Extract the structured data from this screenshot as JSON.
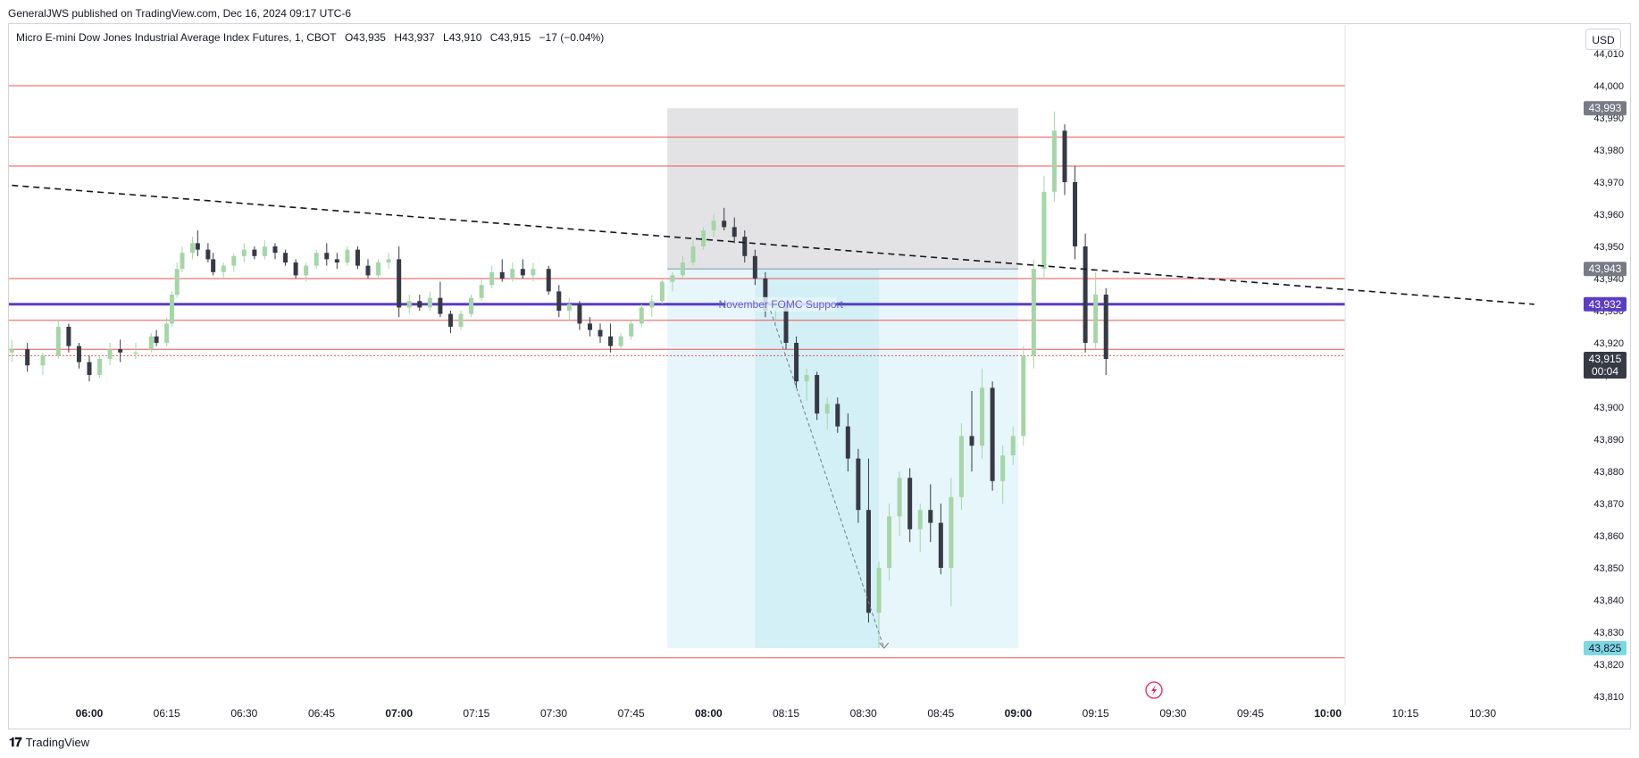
{
  "header": {
    "published": "GeneralJWS published on TradingView.com, Dec 16, 2024 09:17 UTC-6"
  },
  "legend": {
    "symbol": "Micro E-mini Dow Jones Industrial Average Index Futures, 1, CBOT",
    "open": "O43,935",
    "high": "H43,937",
    "low": "L43,910",
    "close": "C43,915",
    "change": "−17 (−0.04%)"
  },
  "currency": "USD",
  "footer": {
    "brand": "TradingView"
  },
  "colors": {
    "up": "#a5d6a7",
    "down": "#363a45",
    "level": "#ef5350",
    "support": "#5b3cc4",
    "price_label": "#363a45",
    "target_label": "#7dd8e6"
  },
  "chart_data": {
    "type": "candlestick",
    "interval": "1 minute",
    "xlim": [
      "05:45",
      "10:40"
    ],
    "ylim": [
      43805,
      44020
    ],
    "y_ticks": [
      "44,010",
      "44,000",
      "43,990",
      "43,980",
      "43,970",
      "43,960",
      "43,950",
      "43,940",
      "43,930",
      "43,920",
      "43,910",
      "43,900",
      "43,890",
      "43,880",
      "43,870",
      "43,860",
      "43,850",
      "43,840",
      "43,830",
      "43,820",
      "43,810"
    ],
    "x_ticks": [
      {
        "label": "06:00",
        "major": true
      },
      {
        "label": "06:15",
        "major": false
      },
      {
        "label": "06:30",
        "major": false
      },
      {
        "label": "06:45",
        "major": false
      },
      {
        "label": "07:00",
        "major": true
      },
      {
        "label": "07:15",
        "major": false
      },
      {
        "label": "07:30",
        "major": false
      },
      {
        "label": "07:45",
        "major": false
      },
      {
        "label": "08:00",
        "major": true
      },
      {
        "label": "08:15",
        "major": false
      },
      {
        "label": "08:30",
        "major": false
      },
      {
        "label": "08:45",
        "major": false
      },
      {
        "label": "09:00",
        "major": true
      },
      {
        "label": "09:15",
        "major": false
      },
      {
        "label": "09:30",
        "major": false
      },
      {
        "label": "09:45",
        "major": false
      },
      {
        "label": "10:00",
        "major": true
      },
      {
        "label": "10:15",
        "major": false
      },
      {
        "label": "10:30",
        "major": false
      }
    ],
    "horizontal_levels": [
      44000,
      43984,
      43975,
      43940,
      43927,
      43918,
      43916,
      43822
    ],
    "support_line": {
      "value": 43932,
      "label": "November FOMC Support"
    },
    "trend_line": {
      "from": [
        "05:45",
        43969
      ],
      "to": [
        "10:40",
        43932
      ]
    },
    "position": {
      "entry": 43943,
      "stop": 43993,
      "target": 43825,
      "start": "07:52",
      "end": "09:00",
      "hold_start": "08:09",
      "hold_end": "08:33"
    },
    "projection_arrow": {
      "from": [
        "08:12",
        43930
      ],
      "to": [
        "08:34",
        43825
      ]
    },
    "price_labels": [
      {
        "text": "43,993",
        "value": 43993
      },
      {
        "text": "43,943",
        "value": 43943
      },
      {
        "text": "43,932",
        "value": 43932
      },
      {
        "text": "43,915",
        "value": 43915
      },
      {
        "text": "43,825",
        "value": 43825
      }
    ],
    "countdown": "00:04",
    "candles": [
      [
        "05:45",
        43917,
        43921,
        43914,
        43918
      ],
      [
        "05:48",
        43918,
        43920,
        43911,
        43913
      ],
      [
        "05:51",
        43913,
        43917,
        43910,
        43916
      ],
      [
        "05:54",
        43916,
        43927,
        43915,
        43925
      ],
      [
        "05:56",
        43925,
        43926,
        43917,
        43919
      ],
      [
        "05:58",
        43919,
        43920,
        43912,
        43914
      ],
      [
        "06:00",
        43914,
        43916,
        43908,
        43910
      ],
      [
        "06:02",
        43910,
        43916,
        43909,
        43915
      ],
      [
        "06:04",
        43915,
        43920,
        43913,
        43918
      ],
      [
        "06:06",
        43918,
        43921,
        43914,
        43917
      ],
      [
        "06:09",
        43917,
        43920,
        43915,
        43917
      ],
      [
        "06:12",
        43918,
        43923,
        43917,
        43922
      ],
      [
        "06:13",
        43922,
        43924,
        43919,
        43920
      ],
      [
        "06:15",
        43920,
        43928,
        43919,
        43926
      ],
      [
        "06:16",
        43926,
        43936,
        43925,
        43935
      ],
      [
        "06:17",
        43935,
        43945,
        43934,
        43943
      ],
      [
        "06:18",
        43943,
        43950,
        43942,
        43948
      ],
      [
        "06:20",
        43948,
        43953,
        43946,
        43951
      ],
      [
        "06:21",
        43951,
        43955,
        43947,
        43949
      ],
      [
        "06:23",
        43949,
        43951,
        43945,
        43946
      ],
      [
        "06:24",
        43946,
        43948,
        43941,
        43942
      ],
      [
        "06:26",
        43942,
        43945,
        43940,
        43944
      ],
      [
        "06:28",
        43944,
        43948,
        43942,
        43947
      ],
      [
        "06:30",
        43947,
        43951,
        43945,
        43949
      ],
      [
        "06:32",
        43949,
        43950,
        43946,
        43947
      ],
      [
        "06:34",
        43947,
        43952,
        43946,
        43950
      ],
      [
        "06:36",
        43950,
        43951,
        43946,
        43948
      ],
      [
        "06:38",
        43948,
        43949,
        43944,
        43945
      ],
      [
        "06:40",
        43945,
        43946,
        43940,
        43941
      ],
      [
        "06:42",
        43941,
        43945,
        43939,
        43944
      ],
      [
        "06:44",
        43944,
        43949,
        43943,
        43948
      ],
      [
        "06:46",
        43948,
        43951,
        43944,
        43946
      ],
      [
        "06:48",
        43946,
        43948,
        43943,
        43945
      ],
      [
        "06:50",
        43945,
        43950,
        43944,
        43949
      ],
      [
        "06:52",
        43949,
        43950,
        43943,
        43944
      ],
      [
        "06:54",
        43944,
        43946,
        43940,
        43941
      ],
      [
        "06:56",
        43941,
        43946,
        43940,
        43945
      ],
      [
        "06:58",
        43945,
        43948,
        43943,
        43946
      ],
      [
        "07:00",
        43946,
        43950,
        43928,
        43931
      ],
      [
        "07:02",
        43931,
        43935,
        43929,
        43933
      ],
      [
        "07:04",
        43933,
        43935,
        43930,
        43931
      ],
      [
        "07:06",
        43931,
        43936,
        43930,
        43934
      ],
      [
        "07:08",
        43934,
        43939,
        43928,
        43929
      ],
      [
        "07:10",
        43929,
        43930,
        43923,
        43925
      ],
      [
        "07:12",
        43925,
        43930,
        43924,
        43929
      ],
      [
        "07:14",
        43929,
        43935,
        43928,
        43934
      ],
      [
        "07:16",
        43934,
        43940,
        43933,
        43938
      ],
      [
        "07:18",
        43938,
        43944,
        43937,
        43942
      ],
      [
        "07:20",
        43942,
        43946,
        43939,
        43940
      ],
      [
        "07:22",
        43940,
        43945,
        43939,
        43943
      ],
      [
        "07:24",
        43943,
        43946,
        43940,
        43941
      ],
      [
        "07:26",
        43941,
        43945,
        43939,
        43943
      ],
      [
        "07:29",
        43943,
        43944,
        43935,
        43936
      ],
      [
        "07:31",
        43936,
        43938,
        43928,
        43930
      ],
      [
        "07:33",
        43930,
        43934,
        43927,
        43932
      ],
      [
        "07:35",
        43932,
        43933,
        43924,
        43926
      ],
      [
        "07:37",
        43926,
        43928,
        43922,
        43924
      ],
      [
        "07:39",
        43924,
        43926,
        43920,
        43922
      ],
      [
        "07:41",
        43922,
        43926,
        43917,
        43919
      ],
      [
        "07:43",
        43919,
        43923,
        43918,
        43922
      ],
      [
        "07:45",
        43922,
        43927,
        43921,
        43926
      ],
      [
        "07:47",
        43926,
        43932,
        43925,
        43931
      ],
      [
        "07:49",
        43931,
        43935,
        43928,
        43933
      ],
      [
        "07:51",
        43933,
        43940,
        43932,
        43939
      ],
      [
        "07:53",
        43939,
        43942,
        43936,
        43941
      ],
      [
        "07:55",
        43941,
        43947,
        43940,
        43945
      ],
      [
        "07:57",
        43945,
        43952,
        43944,
        43950
      ],
      [
        "07:59",
        43950,
        43956,
        43949,
        43955
      ],
      [
        "08:01",
        43955,
        43960,
        43953,
        43958
      ],
      [
        "08:03",
        43958,
        43962,
        43955,
        43956
      ],
      [
        "08:05",
        43956,
        43959,
        43951,
        43953
      ],
      [
        "08:07",
        43953,
        43955,
        43945,
        43947
      ],
      [
        "08:09",
        43947,
        43949,
        43938,
        43940
      ],
      [
        "08:11",
        43940,
        43942,
        43928,
        43930
      ],
      [
        "08:13",
        43930,
        43934,
        43926,
        43932
      ],
      [
        "08:15",
        43932,
        43933,
        43918,
        43920
      ],
      [
        "08:17",
        43920,
        43922,
        43906,
        43908
      ],
      [
        "08:19",
        43908,
        43912,
        43902,
        43910
      ],
      [
        "08:21",
        43910,
        43911,
        43896,
        43898
      ],
      [
        "08:23",
        43898,
        43903,
        43893,
        43901
      ],
      [
        "08:25",
        43901,
        43903,
        43892,
        43894
      ],
      [
        "08:27",
        43894,
        43898,
        43880,
        43884
      ],
      [
        "08:29",
        43884,
        43887,
        43864,
        43868
      ],
      [
        "08:31",
        43868,
        43884,
        43833,
        43836
      ],
      [
        "08:33",
        43836,
        43852,
        43825,
        43850
      ],
      [
        "08:35",
        43850,
        43870,
        43846,
        43866
      ],
      [
        "08:37",
        43866,
        43880,
        43860,
        43878
      ],
      [
        "08:39",
        43878,
        43881,
        43858,
        43862
      ],
      [
        "08:41",
        43862,
        43870,
        43855,
        43868
      ],
      [
        "08:43",
        43868,
        43876,
        43858,
        43864
      ],
      [
        "08:45",
        43864,
        43870,
        43848,
        43850
      ],
      [
        "08:47",
        43850,
        43878,
        43838,
        43872
      ],
      [
        "08:49",
        43872,
        43895,
        43868,
        43891
      ],
      [
        "08:51",
        43891,
        43905,
        43880,
        43888
      ],
      [
        "08:53",
        43888,
        43912,
        43884,
        43906
      ],
      [
        "08:55",
        43906,
        43908,
        43874,
        43877
      ],
      [
        "08:57",
        43877,
        43888,
        43870,
        43885
      ],
      [
        "08:59",
        43885,
        43894,
        43882,
        43891
      ],
      [
        "09:01",
        43891,
        43919,
        43888,
        43916
      ],
      [
        "09:03",
        43916,
        43946,
        43912,
        43943
      ],
      [
        "09:05",
        43943,
        43972,
        43940,
        43967
      ],
      [
        "09:07",
        43967,
        43992,
        43964,
        43986
      ],
      [
        "09:09",
        43986,
        43988,
        43966,
        43970
      ],
      [
        "09:11",
        43970,
        43975,
        43946,
        43950
      ],
      [
        "09:13",
        43950,
        43954,
        43917,
        43920
      ],
      [
        "09:15",
        43920,
        43942,
        43918,
        43935
      ],
      [
        "09:17",
        43935,
        43937,
        43910,
        43915
      ]
    ]
  }
}
